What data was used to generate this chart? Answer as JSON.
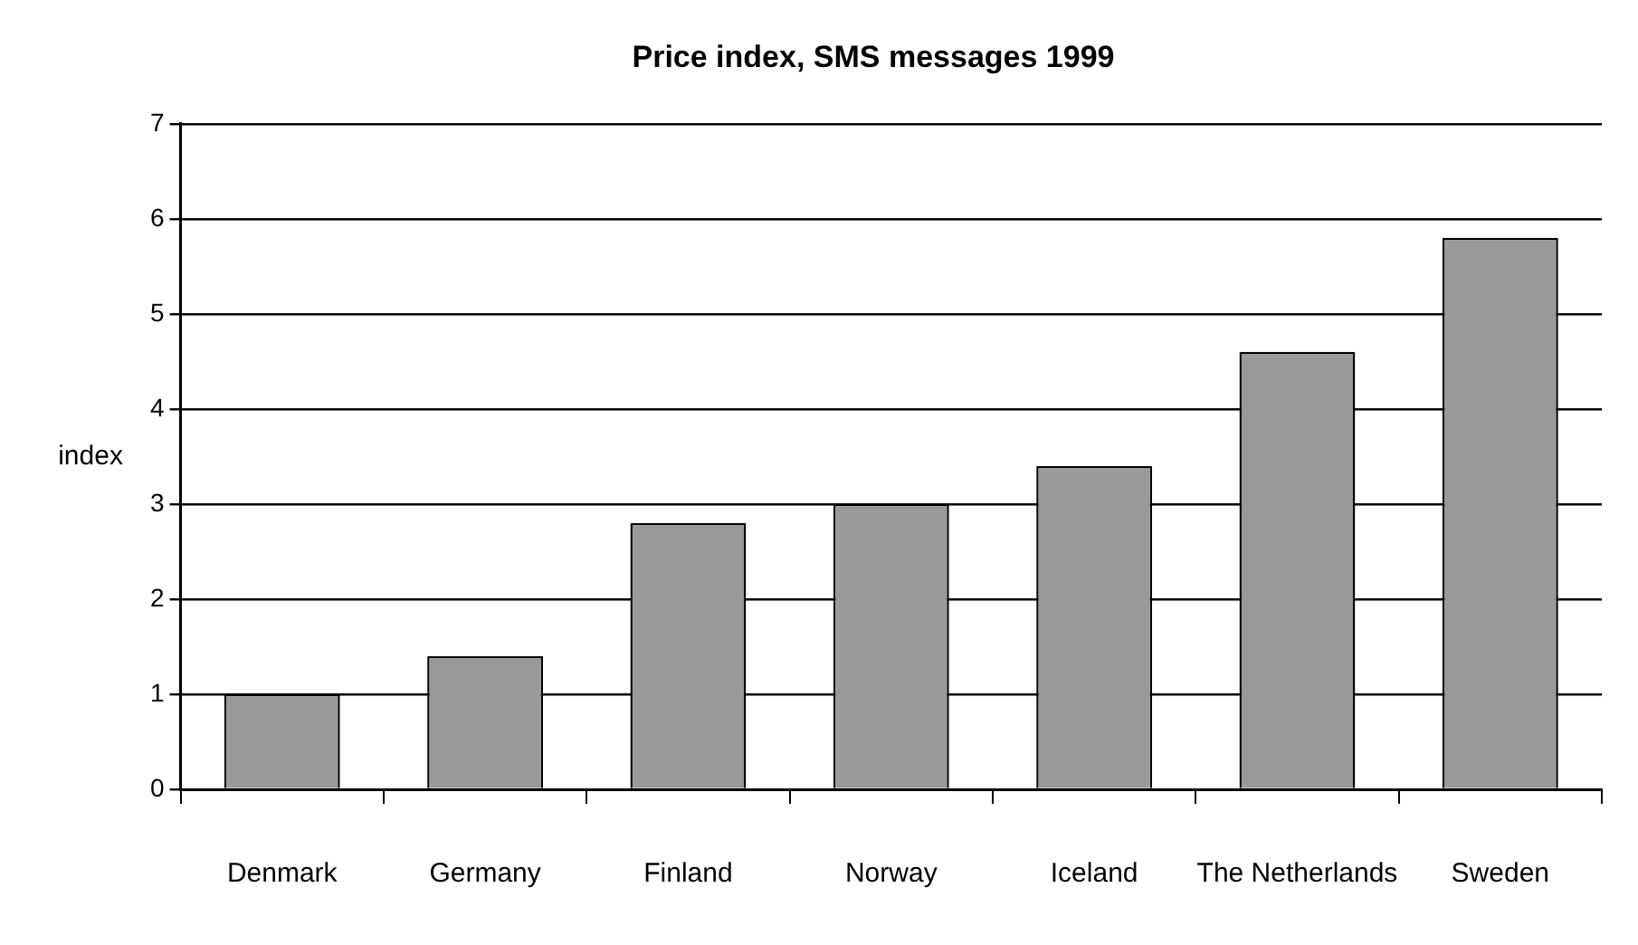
{
  "chart_data": {
    "type": "bar",
    "title": "Price index, SMS messages 1999",
    "ylabel": "index",
    "categories": [
      "Denmark",
      "Germany",
      "Finland",
      "Norway",
      "Iceland",
      "The Netherlands",
      "Sweden"
    ],
    "values": [
      1.0,
      1.4,
      2.8,
      3.0,
      3.4,
      4.6,
      5.8
    ],
    "color": "#999999",
    "ylim": [
      0,
      7
    ],
    "yticks": [
      0,
      1,
      2,
      3,
      4,
      5,
      6,
      7
    ],
    "grid": "y",
    "legend": false
  }
}
